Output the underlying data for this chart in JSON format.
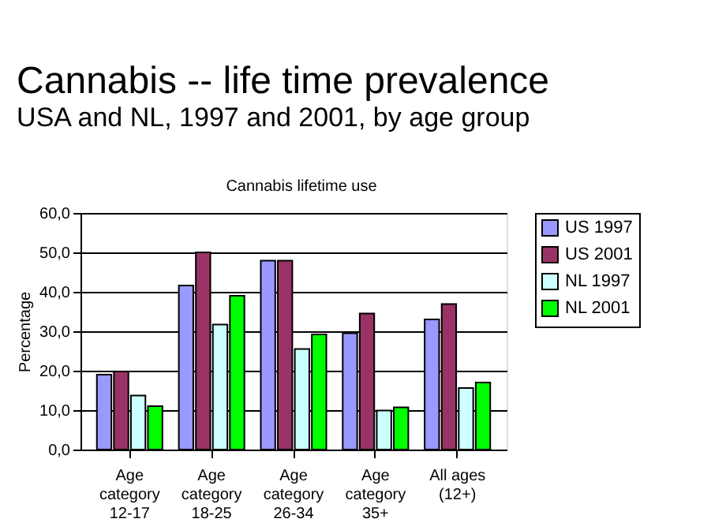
{
  "chart_data": {
    "type": "bar",
    "title": "Cannabis -- life time prevalence",
    "subtitle": "USA and NL, 1997 and 2001, by age group",
    "annotations": [
      "Cannabis lifetime use"
    ],
    "ylabel": "Percentage",
    "categories": [
      "Age\ncategory\n12-17",
      "Age\ncategory\n18-25",
      "Age\ncategory\n26-34",
      "Age\ncategory\n35+",
      "All ages\n(12+)"
    ],
    "series": [
      {
        "name": "US 1997",
        "color": "#9999ff",
        "values": [
          19.0,
          41.6,
          47.9,
          29.5,
          33.0
        ]
      },
      {
        "name": "US 2001",
        "color": "#993366",
        "values": [
          19.8,
          50.0,
          47.9,
          34.5,
          36.9
        ]
      },
      {
        "name": "NL 1997",
        "color": "#ccffff",
        "values": [
          13.7,
          31.7,
          25.5,
          9.9,
          15.6
        ]
      },
      {
        "name": "NL 2001",
        "color": "#00ff00",
        "values": [
          11.0,
          39.0,
          29.2,
          10.7,
          17.0
        ]
      }
    ],
    "ylim": [
      0,
      60
    ],
    "yticks": [
      {
        "value": 0,
        "label": "0,0"
      },
      {
        "value": 10,
        "label": "10,0"
      },
      {
        "value": 20,
        "label": "20,0"
      },
      {
        "value": 30,
        "label": "30,0"
      },
      {
        "value": 40,
        "label": "40,0"
      },
      {
        "value": 50,
        "label": "50,0"
      },
      {
        "value": 60,
        "label": "60,0"
      }
    ],
    "grid": "y",
    "legend": "right"
  }
}
